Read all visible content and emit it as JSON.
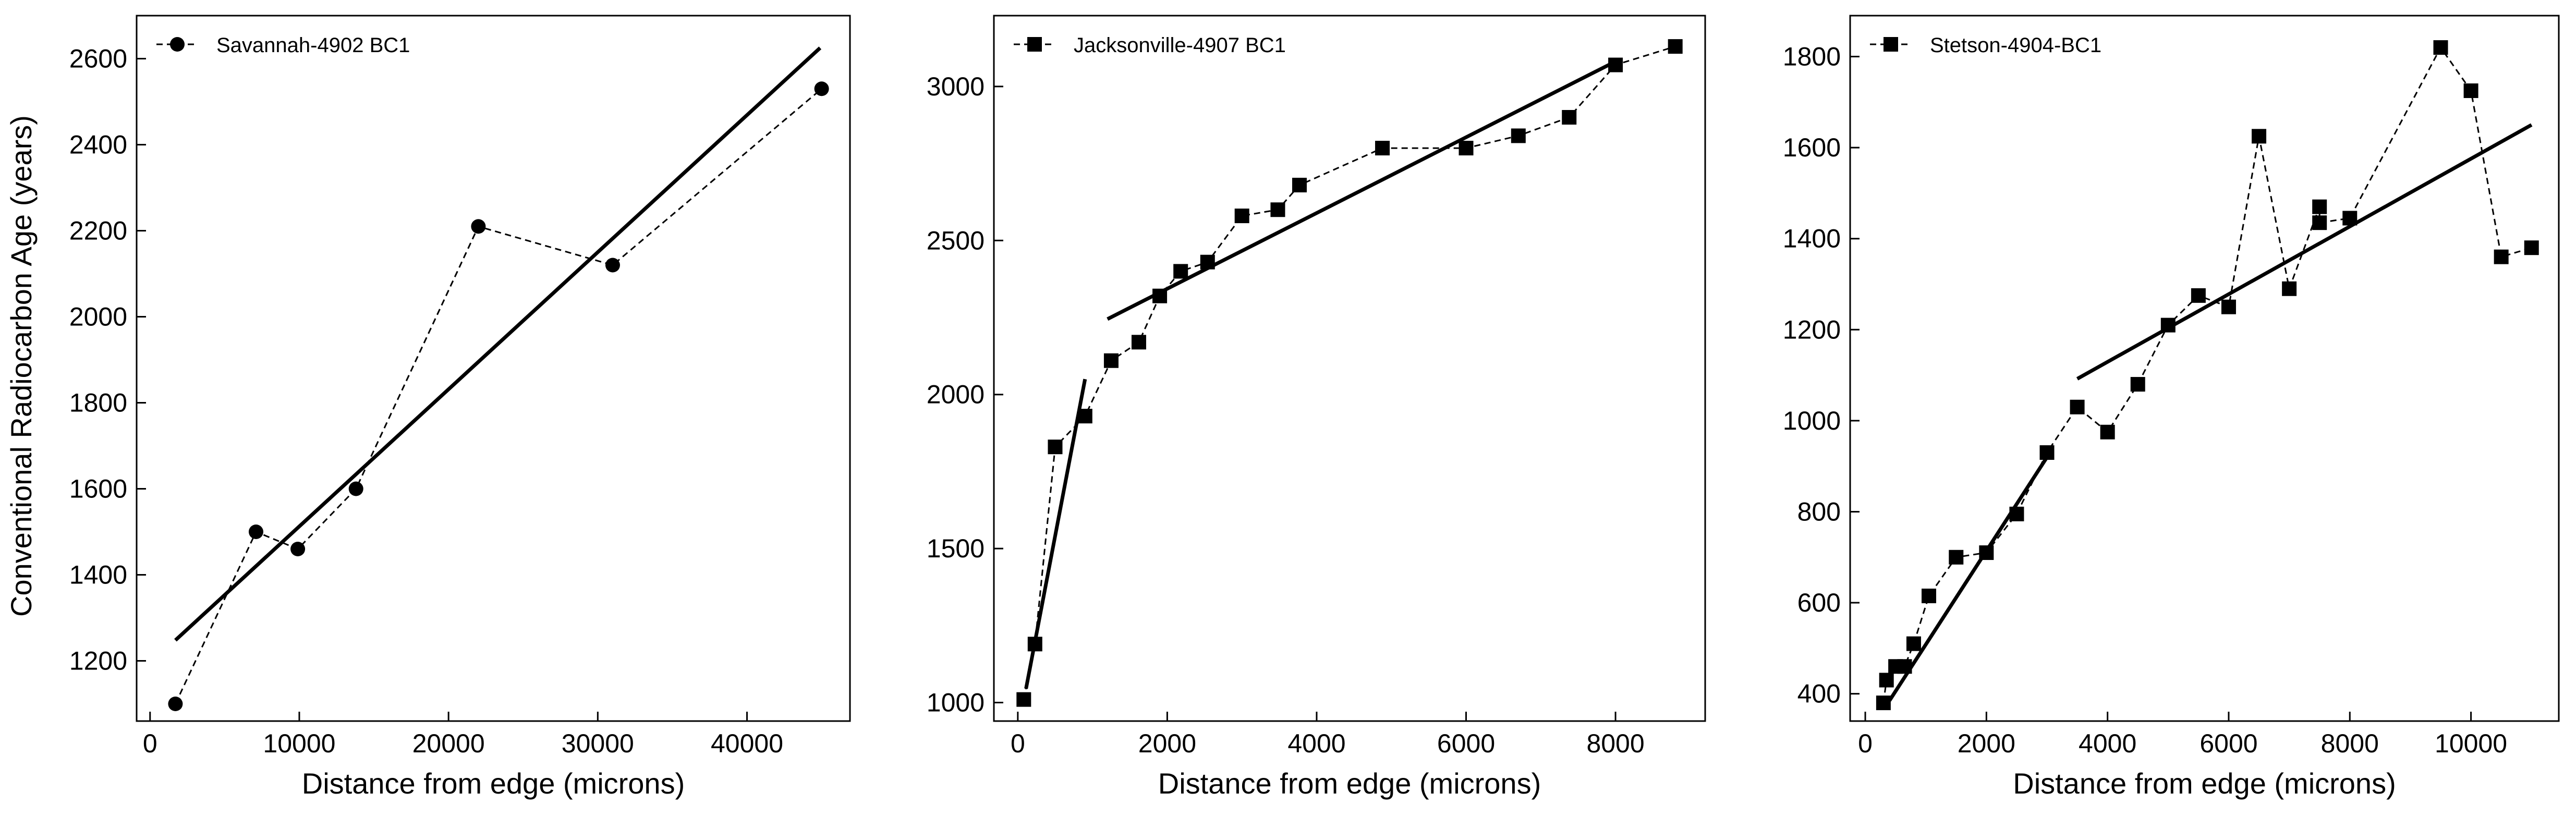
{
  "figure": {
    "shared_ylabel": "Conventional Radiocarbon Age (years)"
  },
  "chart_data": [
    {
      "type": "scatter",
      "title": "",
      "xlabel": "Distance from edge (microns)",
      "ylabel": "Conventional Radiocarbon Age (years)",
      "xlim": [
        -900,
        46900
      ],
      "ylim": [
        1060,
        2700
      ],
      "xticks": [
        0,
        10000,
        20000,
        30000,
        40000
      ],
      "yticks": [
        1200,
        1400,
        1600,
        1800,
        2000,
        2200,
        2400,
        2600
      ],
      "legend_position": "top-left",
      "series": [
        {
          "name": "Savannah-4902 BC1",
          "marker": "circle",
          "line": "dashed",
          "x": [
            1700,
            7100,
            9900,
            13800,
            22000,
            31000,
            45000
          ],
          "y": [
            1100,
            1500,
            1460,
            1600,
            2210,
            2120,
            2530
          ]
        }
      ],
      "fit_lines": [
        {
          "x": [
            1700,
            44900
          ],
          "y": [
            1248,
            2625
          ]
        }
      ]
    },
    {
      "type": "scatter",
      "title": "",
      "xlabel": "Distance from edge (microns)",
      "ylabel": "",
      "xlim": [
        -320,
        9200
      ],
      "ylim": [
        940,
        3230
      ],
      "xticks": [
        0,
        2000,
        4000,
        6000,
        8000
      ],
      "yticks": [
        1000,
        1500,
        2000,
        2500,
        3000
      ],
      "legend_position": "top-left",
      "series": [
        {
          "name": "Jacksonville-4907 BC1",
          "marker": "square",
          "line": "dashed",
          "x": [
            80,
            230,
            500,
            900,
            1250,
            1620,
            1900,
            2180,
            2540,
            3000,
            3480,
            3770,
            4880,
            6000,
            6700,
            7380,
            8000,
            8800
          ],
          "y": [
            1010,
            1190,
            1830,
            1930,
            2110,
            2170,
            2320,
            2400,
            2430,
            2580,
            2600,
            2680,
            2800,
            2800,
            2840,
            2900,
            3070,
            3130
          ]
        }
      ],
      "fit_lines": [
        {
          "x": [
            110,
            900
          ],
          "y": [
            1045,
            2050
          ]
        },
        {
          "x": [
            1200,
            7950
          ],
          "y": [
            2245,
            3075
          ]
        }
      ]
    },
    {
      "type": "scatter",
      "title": "",
      "xlabel": "Distance from edge (microns)",
      "ylabel": "",
      "xlim": [
        -250,
        11450
      ],
      "ylim": [
        340,
        1890
      ],
      "xticks": [
        0,
        2000,
        4000,
        6000,
        8000,
        10000
      ],
      "yticks": [
        400,
        600,
        800,
        1000,
        1200,
        1400,
        1600,
        1800
      ],
      "legend_position": "top-left",
      "series": [
        {
          "name": "Stetson-4904-BC1",
          "marker": "square",
          "line": "dashed",
          "x": [
            300,
            350,
            500,
            650,
            800,
            1050,
            1500,
            2000,
            2500,
            3000,
            3500,
            4000,
            4500,
            5000,
            5500,
            6000,
            6500,
            7000,
            7500,
            7500,
            8000,
            9500,
            10000,
            10500,
            11000
          ],
          "y": [
            380,
            430,
            460,
            460,
            510,
            615,
            700,
            710,
            795,
            930,
            1030,
            975,
            1080,
            1210,
            1275,
            1250,
            1625,
            1290,
            1470,
            1435,
            1445,
            1820,
            1725,
            1360,
            1380
          ]
        }
      ],
      "fit_lines": [
        {
          "x": [
            400,
            3050
          ],
          "y": [
            385,
            930
          ]
        },
        {
          "x": [
            3500,
            11000
          ],
          "y": [
            1092,
            1650
          ]
        }
      ]
    }
  ]
}
